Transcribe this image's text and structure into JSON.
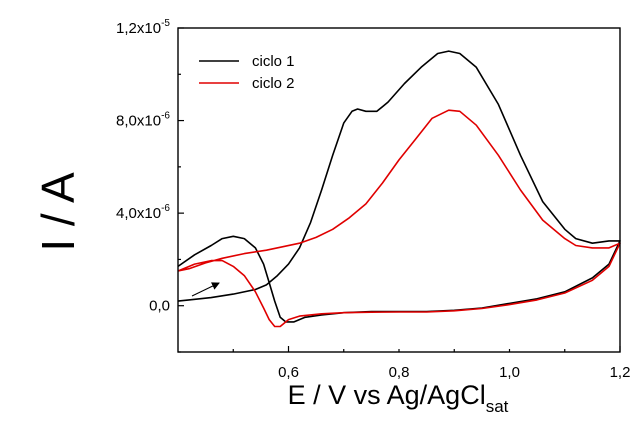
{
  "chart_data": {
    "type": "line",
    "title": "",
    "xlabel": {
      "main": "E / V vs Ag/AgCl",
      "subscript": "sat"
    },
    "ylabel": "I / A",
    "xlim": [
      0.4,
      1.2
    ],
    "ylim": [
      -2e-06,
      1.2e-05
    ],
    "x_ticks": [
      {
        "value": 0.6,
        "label": "0,6"
      },
      {
        "value": 0.8,
        "label": "0,8"
      },
      {
        "value": 1.0,
        "label": "1,0"
      },
      {
        "value": 1.2,
        "label": "1,2"
      }
    ],
    "y_ticks": [
      {
        "value": 0.0,
        "mantissa": "0,0",
        "exp": ""
      },
      {
        "value": 4e-06,
        "mantissa": "4,0x10",
        "exp": "-6"
      },
      {
        "value": 8e-06,
        "mantissa": "8,0x10",
        "exp": "-6"
      },
      {
        "value": 1.2e-05,
        "mantissa": "1,2x10",
        "exp": "-5"
      }
    ],
    "legend_position": "top-left",
    "grid": false,
    "annotation": "arrow indicating anodic scan direction",
    "series": [
      {
        "name": "ciclo 1",
        "color": "#000000",
        "points": [
          [
            0.4,
            1.7e-06
          ],
          [
            0.43,
            2.2e-06
          ],
          [
            0.46,
            2.6e-06
          ],
          [
            0.48,
            2.9e-06
          ],
          [
            0.5,
            3e-06
          ],
          [
            0.52,
            2.9e-06
          ],
          [
            0.54,
            2.5e-06
          ],
          [
            0.555,
            1.8e-06
          ],
          [
            0.565,
            1e-06
          ],
          [
            0.575,
            2e-07
          ],
          [
            0.585,
            -5e-07
          ],
          [
            0.595,
            -7e-07
          ],
          [
            0.61,
            -7e-07
          ],
          [
            0.63,
            -5e-07
          ],
          [
            0.66,
            -4e-07
          ],
          [
            0.7,
            -3e-07
          ],
          [
            0.75,
            -2.5e-07
          ],
          [
            0.8,
            -2.5e-07
          ],
          [
            0.85,
            -2.5e-07
          ],
          [
            0.9,
            -2e-07
          ],
          [
            0.95,
            -1e-07
          ],
          [
            1.0,
            1e-07
          ],
          [
            1.05,
            3e-07
          ],
          [
            1.1,
            6e-07
          ],
          [
            1.15,
            1.2e-06
          ],
          [
            1.18,
            1.8e-06
          ],
          [
            1.2,
            2.8e-06
          ],
          [
            1.18,
            2.8e-06
          ],
          [
            1.15,
            2.7e-06
          ],
          [
            1.12,
            2.9e-06
          ],
          [
            1.1,
            3.3e-06
          ],
          [
            1.06,
            4.5e-06
          ],
          [
            1.02,
            6.5e-06
          ],
          [
            0.98,
            8.7e-06
          ],
          [
            0.94,
            1.03e-05
          ],
          [
            0.91,
            1.09e-05
          ],
          [
            0.89,
            1.1e-05
          ],
          [
            0.87,
            1.09e-05
          ],
          [
            0.84,
            1.03e-05
          ],
          [
            0.81,
            9.6e-06
          ],
          [
            0.78,
            8.8e-06
          ],
          [
            0.76,
            8.4e-06
          ],
          [
            0.74,
            8.4e-06
          ],
          [
            0.725,
            8.5e-06
          ],
          [
            0.715,
            8.4e-06
          ],
          [
            0.7,
            7.9e-06
          ],
          [
            0.68,
            6.5e-06
          ],
          [
            0.66,
            5e-06
          ],
          [
            0.64,
            3.6e-06
          ],
          [
            0.62,
            2.5e-06
          ],
          [
            0.6,
            1.8e-06
          ],
          [
            0.58,
            1.3e-06
          ],
          [
            0.56,
            9e-07
          ],
          [
            0.54,
            7e-07
          ],
          [
            0.5,
            5e-07
          ],
          [
            0.46,
            3.5e-07
          ],
          [
            0.42,
            2.5e-07
          ],
          [
            0.4,
            2e-07
          ]
        ]
      },
      {
        "name": "ciclo 2",
        "color": "#e00000",
        "points": [
          [
            0.4,
            1.5e-06
          ],
          [
            0.43,
            1.8e-06
          ],
          [
            0.46,
            1.95e-06
          ],
          [
            0.48,
            1.95e-06
          ],
          [
            0.5,
            1.7e-06
          ],
          [
            0.52,
            1.3e-06
          ],
          [
            0.54,
            6e-07
          ],
          [
            0.555,
            -1e-07
          ],
          [
            0.565,
            -6e-07
          ],
          [
            0.575,
            -9e-07
          ],
          [
            0.585,
            -9e-07
          ],
          [
            0.6,
            -6e-07
          ],
          [
            0.62,
            -4.5e-07
          ],
          [
            0.66,
            -3.5e-07
          ],
          [
            0.7,
            -3e-07
          ],
          [
            0.75,
            -2.8e-07
          ],
          [
            0.8,
            -2.7e-07
          ],
          [
            0.85,
            -2.7e-07
          ],
          [
            0.9,
            -2.2e-07
          ],
          [
            0.95,
            -1.2e-07
          ],
          [
            1.0,
            5e-08
          ],
          [
            1.05,
            2.5e-07
          ],
          [
            1.1,
            5.5e-07
          ],
          [
            1.15,
            1.1e-06
          ],
          [
            1.18,
            1.7e-06
          ],
          [
            1.2,
            2.7e-06
          ],
          [
            1.18,
            2.5e-06
          ],
          [
            1.15,
            2.5e-06
          ],
          [
            1.12,
            2.6e-06
          ],
          [
            1.1,
            2.9e-06
          ],
          [
            1.06,
            3.7e-06
          ],
          [
            1.02,
            5e-06
          ],
          [
            0.98,
            6.5e-06
          ],
          [
            0.94,
            7.8e-06
          ],
          [
            0.91,
            8.4e-06
          ],
          [
            0.89,
            8.45e-06
          ],
          [
            0.86,
            8.1e-06
          ],
          [
            0.83,
            7.2e-06
          ],
          [
            0.8,
            6.3e-06
          ],
          [
            0.77,
            5.3e-06
          ],
          [
            0.74,
            4.4e-06
          ],
          [
            0.71,
            3.8e-06
          ],
          [
            0.68,
            3.3e-06
          ],
          [
            0.65,
            2.95e-06
          ],
          [
            0.62,
            2.7e-06
          ],
          [
            0.59,
            2.55e-06
          ],
          [
            0.56,
            2.4e-06
          ],
          [
            0.52,
            2.25e-06
          ],
          [
            0.48,
            2.05e-06
          ],
          [
            0.45,
            1.85e-06
          ],
          [
            0.42,
            1.6e-06
          ],
          [
            0.4,
            1.5e-06
          ]
        ]
      }
    ]
  }
}
